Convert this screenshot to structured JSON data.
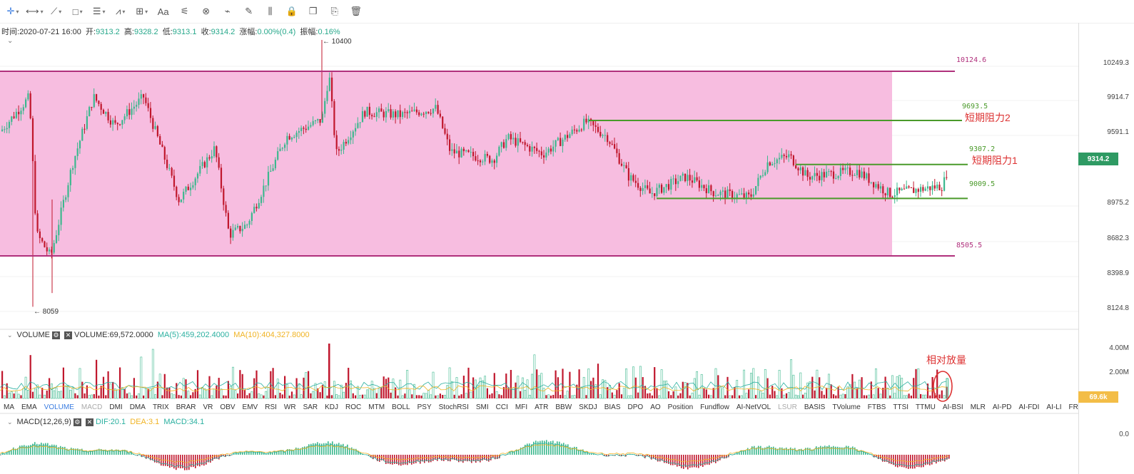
{
  "toolbar": {
    "tools": [
      {
        "icon": "crosshair-icon",
        "glyph": "✛",
        "dropdown": true
      },
      {
        "icon": "horizontal-line-icon",
        "glyph": "⟷",
        "dropdown": true
      },
      {
        "icon": "trend-line-icon",
        "glyph": "⟋",
        "dropdown": true
      },
      {
        "icon": "rectangle-icon",
        "glyph": "□",
        "dropdown": true
      },
      {
        "icon": "parallel-lines-icon",
        "glyph": "☰",
        "dropdown": true
      },
      {
        "icon": "wave-pattern-icon",
        "glyph": "⩘",
        "dropdown": true
      },
      {
        "icon": "measure-icon",
        "glyph": "⊞",
        "dropdown": true
      },
      {
        "icon": "text-icon",
        "glyph": "Aa",
        "dropdown": false
      },
      {
        "icon": "fib-icon",
        "glyph": "⚟",
        "dropdown": false
      },
      {
        "icon": "magnet-icon",
        "glyph": "⊗",
        "dropdown": false
      },
      {
        "icon": "ruler-icon",
        "glyph": "⌁",
        "dropdown": false
      },
      {
        "icon": "pen-icon",
        "glyph": "✎",
        "dropdown": false
      },
      {
        "icon": "bars-icon",
        "glyph": "⫼",
        "dropdown": false
      },
      {
        "icon": "lock-icon",
        "glyph": "🔒",
        "dropdown": false
      },
      {
        "icon": "copy-icon",
        "glyph": "❐",
        "dropdown": false
      },
      {
        "icon": "screenshot-icon",
        "glyph": "⎘",
        "dropdown": false
      },
      {
        "icon": "trash-icon",
        "glyph": "🗑",
        "dropdown": false
      }
    ]
  },
  "ohlc": {
    "time_label": "时间:",
    "time": "2020-07-21 16:00",
    "open_label": "开:",
    "open": "9313.2",
    "high_label": "高:",
    "high": "9328.2",
    "low_label": "低:",
    "low": "9313.1",
    "close_label": "收:",
    "close": "9314.2",
    "chg_label": "涨幅:",
    "chg": "0.00%(0.4)",
    "amp_label": "振幅:",
    "amp": "0.16%"
  },
  "price_axis": {
    "ticks": [
      "10249.3",
      "9914.7",
      "9591.1",
      "8975.2",
      "8682.3",
      "8398.9",
      "8124.8"
    ],
    "current": "9314.2"
  },
  "markers": {
    "high": "← 10400",
    "low": "← 8059"
  },
  "levels": [
    {
      "label": "10124.6",
      "color": "#b0307c"
    },
    {
      "label": "9693.5",
      "color": "#4a9a2a"
    },
    {
      "label": "9307.2",
      "color": "#4a9a2a"
    },
    {
      "label": "9009.5",
      "color": "#4a9a2a"
    },
    {
      "label": "8505.5",
      "color": "#b0307c"
    }
  ],
  "annotations": {
    "resistance2": "短期阻力2",
    "resistance1": "短期阻力1",
    "volume_note": "相对放量"
  },
  "volume": {
    "name": "VOLUME",
    "value": "VOLUME:69,572.0000",
    "ma5": "MA(5):459,202.4000",
    "ma10": "MA(10):404,327.8000",
    "ticks": [
      "4.00M",
      "2.00M"
    ],
    "current": "69.6k"
  },
  "indicators": {
    "items": [
      "MA",
      "EMA",
      "VOLUME",
      "MACD",
      "DMI",
      "DMA",
      "TRIX",
      "BRAR",
      "VR",
      "OBV",
      "EMV",
      "RSI",
      "WR",
      "SAR",
      "KDJ",
      "ROC",
      "MTM",
      "BOLL",
      "PSY",
      "StochRSI",
      "SMI",
      "CCI",
      "MFI",
      "ATR",
      "BBW",
      "SKDJ",
      "BIAS",
      "DPO",
      "AO",
      "Position",
      "Fundflow",
      "AI-NetVOL",
      "LSUR",
      "BASIS",
      "TVolume",
      "FTBS",
      "TTSI",
      "TTMU",
      "AI-BSI",
      "MLR",
      "AI-PD",
      "AI-FDI",
      "AI-LI",
      "FR"
    ],
    "active": [
      "VOLUME"
    ],
    "dim": [
      "MACD",
      "LSUR"
    ]
  },
  "macd": {
    "name": "MACD(12,26,9)",
    "dif": "DIF:20.1",
    "dea": "DEA:3.1",
    "macd": "MACD:34.1",
    "tick": "0.0"
  },
  "colors": {
    "up": "#3cb88e",
    "down": "#c0172d",
    "zone": "#f7bde0",
    "magenta": "#b0307c",
    "green": "#4a9a2a",
    "ma5": "#2bb0a0",
    "ma10": "#f0b323"
  }
}
